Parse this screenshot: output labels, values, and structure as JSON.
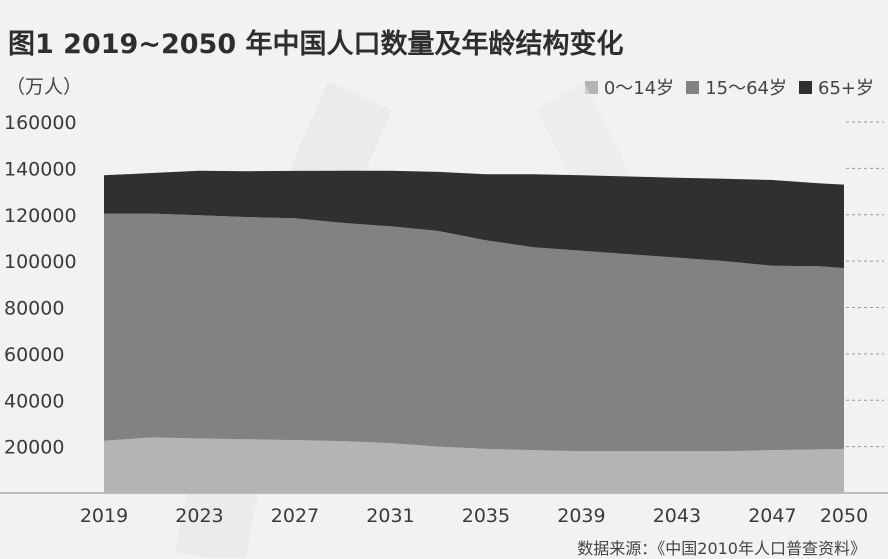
{
  "title": "图1 2019~2050 年中国人口数量及年龄结构变化",
  "unit_label": "（万人）",
  "source": "数据来源：《中国2010年人口普查资料》",
  "colors": {
    "age_0_14": "#b4b4b4",
    "age_15_64": "#828282",
    "age_65_plus": "#303030",
    "background": "#f2f2f2"
  },
  "chart_data": {
    "type": "area",
    "stacked": true,
    "x": [
      2019,
      2021,
      2023,
      2025,
      2027,
      2029,
      2031,
      2033,
      2035,
      2037,
      2039,
      2041,
      2043,
      2045,
      2047,
      2049,
      2050
    ],
    "x_tick_labels": [
      "2019",
      "2023",
      "2027",
      "2031",
      "2035",
      "2039",
      "2043",
      "2047",
      "2050"
    ],
    "y_tick_labels": [
      "160000",
      "140000",
      "120000",
      "100000",
      "80000",
      "60000",
      "40000",
      "20000"
    ],
    "ylim": [
      0,
      160000
    ],
    "series": [
      {
        "name": "0～14岁",
        "values": [
          22500,
          24000,
          23500,
          23200,
          22800,
          22400,
          21500,
          20000,
          19000,
          18500,
          18000,
          18000,
          18000,
          18000,
          18500,
          18800,
          19000
        ]
      },
      {
        "name": "15～64岁",
        "values": [
          98000,
          96500,
          96300,
          95800,
          95700,
          94100,
          93500,
          93000,
          90000,
          87500,
          86500,
          85000,
          83500,
          82000,
          79500,
          79000,
          78000
        ]
      },
      {
        "name": "65+岁",
        "values": [
          16500,
          17500,
          19200,
          19800,
          20400,
          22500,
          24000,
          25500,
          28500,
          31500,
          32500,
          33500,
          34500,
          35500,
          37000,
          35700,
          36000
        ]
      }
    ],
    "legend": [
      "0～14岁",
      "15～64岁",
      "65+岁"
    ],
    "legend_position": "top-right",
    "grid": "dashed horizontal at right edge only"
  }
}
